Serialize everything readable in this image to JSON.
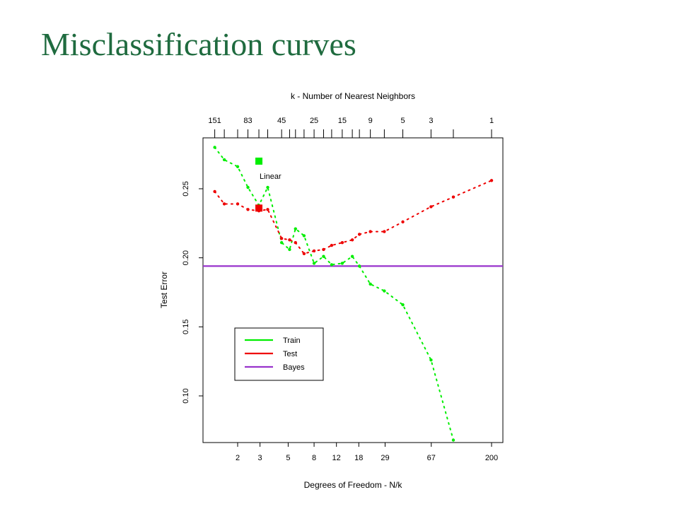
{
  "slide": {
    "title": "Misclassification curves"
  },
  "colors": {
    "title": "#1f6b3f",
    "train": "#00ee00",
    "test": "#ee0000",
    "bayes": "#9933cc"
  },
  "chart_data": {
    "type": "line",
    "top_axis_title": "k -  Number of Nearest Neighbors",
    "xlabel": "Degrees of Freedom - N/k",
    "ylabel": "Test Error",
    "x_scale": "log",
    "x_range": [
      1.0,
      220
    ],
    "ylim": [
      0.068,
      0.288
    ],
    "x_ticks": [
      "2",
      "3",
      "5",
      "8",
      "12",
      "18",
      "29",
      "67",
      "200"
    ],
    "y_ticks": [
      "0.10",
      "0.15",
      "0.20",
      "0.25"
    ],
    "top_ticks": [
      {
        "label": "151",
        "df": 1.32
      },
      {
        "label": "83",
        "df": 2.41
      },
      {
        "label": "45",
        "df": 4.44
      },
      {
        "label": "25",
        "df": 8.0
      },
      {
        "label": "15",
        "df": 13.33
      },
      {
        "label": "9",
        "df": 22.2
      },
      {
        "label": "5",
        "df": 40
      },
      {
        "label": "3",
        "df": 66.7
      },
      {
        "label": "1",
        "df": 200
      }
    ],
    "top_minor_df": [
      1.57,
      2.0,
      2.94,
      3.45,
      5.13,
      5.71,
      6.67,
      9.5,
      11.0,
      16.0,
      18.2,
      28.6,
      100
    ],
    "legend": [
      {
        "name": "Train",
        "color": "#00ee00"
      },
      {
        "name": "Test",
        "color": "#ee0000"
      },
      {
        "name": "Bayes",
        "color": "#9933cc"
      }
    ],
    "bayes_error": 0.194,
    "series": [
      {
        "name": "Train",
        "x": [
          1.32,
          1.57,
          2.0,
          2.41,
          2.94,
          3.45,
          4.44,
          5.13,
          5.71,
          6.67,
          8.0,
          9.5,
          11.0,
          13.33,
          16.0,
          18.2,
          22.2,
          28.6,
          40,
          66.7,
          100
        ],
        "values": [
          0.28,
          0.271,
          0.266,
          0.251,
          0.238,
          0.251,
          0.211,
          0.206,
          0.221,
          0.216,
          0.196,
          0.201,
          0.195,
          0.196,
          0.201,
          0.194,
          0.181,
          0.176,
          0.166,
          0.126,
          0.068
        ]
      },
      {
        "name": "Test",
        "x": [
          1.32,
          1.57,
          2.0,
          2.41,
          2.94,
          3.45,
          4.44,
          5.13,
          5.71,
          6.67,
          8.0,
          9.5,
          11.0,
          13.33,
          16.0,
          18.2,
          22.2,
          28.6,
          40,
          66.7,
          100,
          200
        ],
        "values": [
          0.248,
          0.239,
          0.239,
          0.235,
          0.234,
          0.235,
          0.214,
          0.213,
          0.211,
          0.203,
          0.205,
          0.206,
          0.209,
          0.211,
          0.213,
          0.217,
          0.219,
          0.219,
          0.226,
          0.237,
          0.244,
          0.256
        ]
      }
    ],
    "linear_label": "Linear",
    "linear_train": {
      "x": 2.94,
      "value": 0.27
    },
    "linear_test": {
      "x": 2.94,
      "value": 0.236
    }
  }
}
